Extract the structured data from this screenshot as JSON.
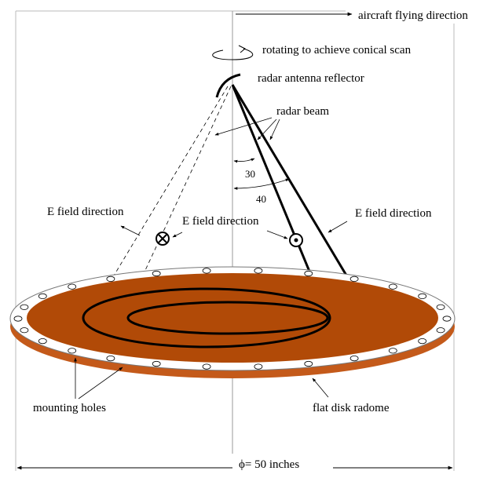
{
  "labels": {
    "aircraft_direction": "aircraft flying direction",
    "rotating": "rotating to achieve conical scan",
    "antenna": "radar antenna reflector",
    "radar_beam": "radar beam",
    "angle_30": "30",
    "angle_40": "40",
    "efield_left": "E field direction",
    "efield_center": "E field direction",
    "efield_right": "E field direction",
    "mounting_holes": "mounting holes",
    "radome": "flat disk radome",
    "diameter": "ϕ= 50    inches"
  },
  "colors": {
    "radome_fill": "#B14A07",
    "radome_edge": "#C45A1A",
    "ring": "#ffffff",
    "line": "#000000",
    "guide": "#9a9a9a"
  }
}
